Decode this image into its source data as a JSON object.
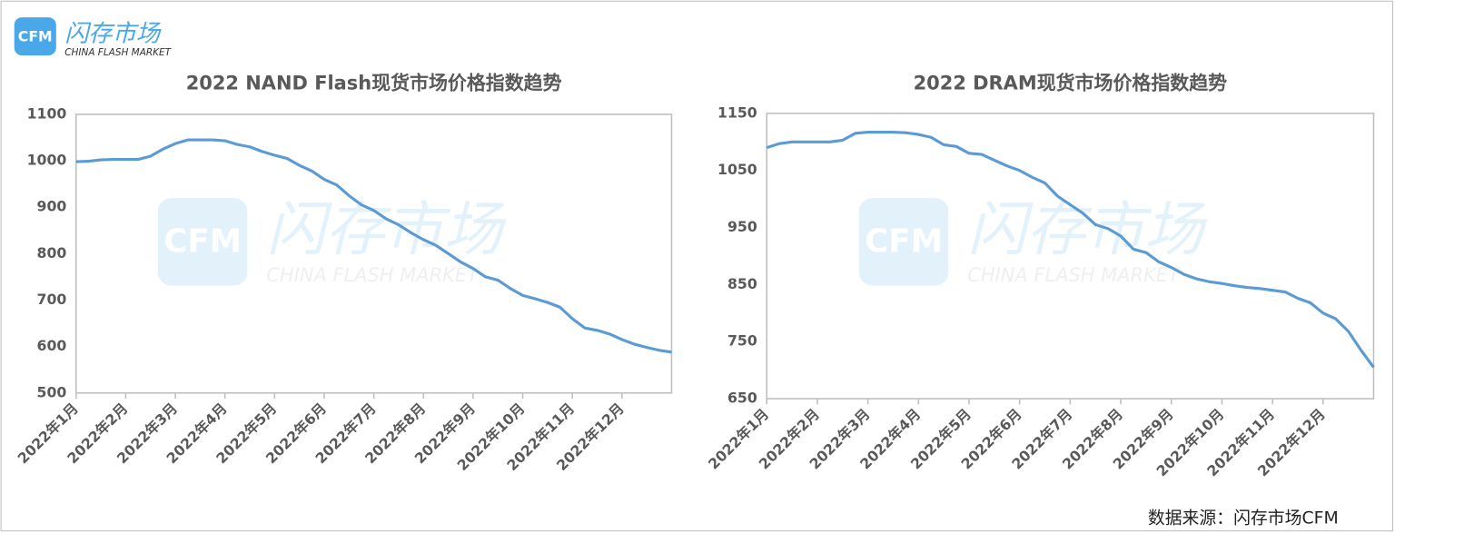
{
  "logo": {
    "mark": "CFM",
    "name": "闪存市场",
    "english": "CHINA FLASH MARKET"
  },
  "source": "数据来源：闪存市场CFM",
  "chart_data": [
    {
      "type": "line",
      "title": "2022 NAND Flash现货市场价格指数趋势",
      "categories": [
        "2022年1月",
        null,
        null,
        null,
        "2022年2月",
        null,
        null,
        null,
        "2022年3月",
        null,
        null,
        null,
        "2022年4月",
        null,
        null,
        null,
        "2022年5月",
        null,
        null,
        null,
        "2022年6月",
        null,
        null,
        null,
        "2022年7月",
        null,
        null,
        null,
        "2022年8月",
        null,
        null,
        null,
        "2022年9月",
        null,
        null,
        null,
        "2022年10月",
        null,
        null,
        null,
        "2022年11月",
        null,
        null,
        null,
        "2022年12月",
        null,
        null,
        null,
        null
      ],
      "values": [
        998,
        999,
        1002,
        1003,
        1003,
        1003,
        1010,
        1025,
        1037,
        1045,
        1045,
        1045,
        1043,
        1035,
        1030,
        1020,
        1012,
        1005,
        990,
        978,
        960,
        948,
        925,
        905,
        893,
        875,
        862,
        845,
        830,
        818,
        800,
        782,
        768,
        750,
        743,
        725,
        710,
        703,
        695,
        685,
        660,
        640,
        635,
        627,
        615,
        605,
        598,
        592,
        588
      ],
      "color": "#5b9bd5",
      "ylim": [
        500,
        1100
      ],
      "yticks": [
        500,
        600,
        700,
        800,
        900,
        1000,
        1100
      ],
      "grid": false
    },
    {
      "type": "line",
      "title": "2022 DRAM现货市场价格指数趋势",
      "categories": [
        "2022年1月",
        null,
        null,
        null,
        "2022年2月",
        null,
        null,
        null,
        "2022年3月",
        null,
        null,
        null,
        "2022年4月",
        null,
        null,
        null,
        "2022年5月",
        null,
        null,
        null,
        "2022年6月",
        null,
        null,
        null,
        "2022年7月",
        null,
        null,
        null,
        "2022年8月",
        null,
        null,
        null,
        "2022年9月",
        null,
        null,
        null,
        "2022年10月",
        null,
        null,
        null,
        "2022年11月",
        null,
        null,
        null,
        "2022年12月",
        null,
        null,
        null,
        null
      ],
      "values": [
        1090,
        1097,
        1100,
        1100,
        1100,
        1100,
        1103,
        1115,
        1117,
        1117,
        1117,
        1116,
        1113,
        1108,
        1095,
        1092,
        1080,
        1078,
        1068,
        1058,
        1050,
        1038,
        1028,
        1005,
        990,
        975,
        955,
        948,
        935,
        912,
        906,
        890,
        880,
        868,
        860,
        855,
        852,
        848,
        845,
        843,
        840,
        837,
        826,
        818,
        800,
        790,
        768,
        735,
        705
      ],
      "color": "#5b9bd5",
      "ylim": [
        650,
        1150
      ],
      "yticks": [
        650,
        750,
        850,
        950,
        1050,
        1150
      ],
      "grid": false
    }
  ]
}
